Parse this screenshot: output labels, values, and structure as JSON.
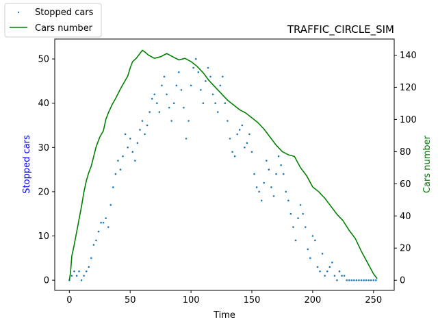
{
  "chart_data": {
    "type": "scatter+line",
    "title": "TRAFFIC_CIRCLE_SIM",
    "xlabel": "Time",
    "ylabel_left": "Stopped cars",
    "ylabel_right": "Cars number",
    "xlim": [
      -12,
      267
    ],
    "ylim_left": [
      -2.3,
      54.5
    ],
    "ylim_right": [
      -6.3,
      150
    ],
    "x_ticks": [
      0,
      50,
      100,
      150,
      200,
      250
    ],
    "y_left_ticks": [
      0,
      10,
      20,
      30,
      40,
      50
    ],
    "y_right_ticks": [
      0,
      20,
      40,
      60,
      80,
      100,
      120,
      140
    ],
    "grid": false,
    "legend_position": "upper-left, outside plot",
    "series": [
      {
        "name": "Stopped cars",
        "kind": "scatter",
        "axis": "left",
        "color": "#1f77b4",
        "x": [
          0,
          2,
          4,
          6,
          8,
          10,
          12,
          14,
          16,
          18,
          20,
          22,
          24,
          26,
          28,
          30,
          32,
          34,
          36,
          38,
          40,
          42,
          44,
          46,
          48,
          50,
          52,
          54,
          56,
          58,
          60,
          62,
          64,
          66,
          68,
          70,
          72,
          74,
          76,
          78,
          80,
          82,
          84,
          86,
          88,
          90,
          92,
          94,
          96,
          98,
          100,
          102,
          104,
          106,
          108,
          110,
          112,
          114,
          116,
          118,
          120,
          122,
          124,
          126,
          128,
          130,
          132,
          134,
          136,
          138,
          140,
          142,
          144,
          146,
          148,
          150,
          152,
          154,
          156,
          158,
          160,
          162,
          164,
          166,
          168,
          170,
          172,
          174,
          176,
          178,
          180,
          182,
          184,
          186,
          188,
          190,
          192,
          194,
          196,
          198,
          200,
          202,
          204,
          206,
          208,
          210,
          212,
          214,
          216,
          218,
          220,
          222,
          224,
          226,
          228,
          230,
          232,
          234,
          236,
          238,
          240,
          242,
          244,
          246,
          248,
          250,
          252
        ],
        "y": [
          0,
          1,
          2,
          1,
          2,
          0,
          1,
          2,
          3,
          5,
          8,
          9,
          11,
          13,
          13,
          14,
          12,
          17,
          21,
          24,
          27,
          25,
          28,
          33,
          30,
          32,
          29,
          27,
          31,
          34,
          36,
          33,
          35,
          38,
          41,
          42,
          40,
          38,
          44,
          46,
          42,
          39,
          36,
          40,
          44,
          47,
          43,
          39,
          32,
          36,
          44,
          48,
          50,
          47,
          43,
          40,
          45,
          48,
          46,
          42,
          40,
          38,
          44,
          46,
          40,
          36,
          32,
          29,
          28,
          33,
          34,
          35,
          30,
          31,
          33,
          29,
          24,
          21,
          20,
          18,
          22,
          27,
          25,
          21,
          19,
          24,
          28,
          26,
          24,
          20,
          18,
          15,
          12,
          9,
          14,
          17,
          15,
          12,
          7,
          5,
          10,
          9,
          3,
          2,
          6,
          1,
          2,
          3,
          4,
          1,
          0,
          2,
          1,
          1,
          0,
          0,
          0,
          0,
          0,
          0,
          0,
          0,
          0,
          0,
          0,
          0,
          0
        ]
      },
      {
        "name": "Cars number",
        "kind": "line",
        "axis": "right",
        "color": "#008000",
        "x": [
          0,
          1,
          2,
          4,
          6,
          8,
          10,
          12,
          14,
          16,
          18,
          20,
          22,
          25,
          28,
          30,
          32,
          35,
          38,
          40,
          42,
          45,
          48,
          50,
          52,
          55,
          58,
          60,
          62,
          65,
          70,
          75,
          80,
          85,
          90,
          95,
          100,
          105,
          110,
          115,
          120,
          125,
          130,
          135,
          140,
          145,
          150,
          155,
          160,
          165,
          170,
          175,
          180,
          185,
          190,
          195,
          200,
          205,
          210,
          215,
          220,
          225,
          230,
          235,
          240,
          245,
          250,
          253
        ],
        "y": [
          0,
          5,
          15,
          22,
          30,
          38,
          46,
          55,
          62,
          67,
          71,
          77,
          83,
          89,
          93,
          100,
          104,
          109,
          113,
          116,
          119,
          123,
          127,
          132,
          136,
          138,
          141,
          143,
          142,
          140,
          138,
          139,
          141,
          139,
          137,
          138,
          136,
          133,
          129,
          124,
          120,
          116,
          112,
          109,
          106,
          104,
          101,
          98,
          94,
          89,
          84,
          80,
          78,
          77,
          70,
          65,
          58,
          55,
          51,
          46,
          41,
          37,
          31,
          26,
          18,
          11,
          4,
          1
        ]
      }
    ]
  }
}
